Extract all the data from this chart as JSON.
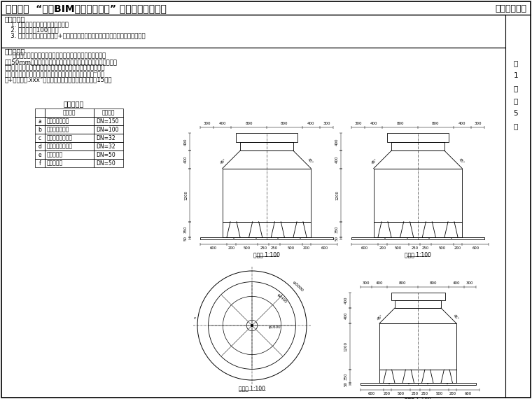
{
  "title": "第十二期  “全国BIM技能等级考试” 二级（设备）试题",
  "org": "中国图学学会",
  "req_title": "考试要求：",
  "req_lines": [
    "   1. 考试方式：计算机操作，闭卷；",
    "   2. 考试时间为100分钟；",
    "   3. 新建文件夹（以准考证号+姓名命名），用于存放本次考试中生成的全部文件。"
  ],
  "prob_title": "试题部分：",
  "prob_lines": [
    "    一、根据图纸，用构件集方式建立冷却塔模型，支座圆管直",
    "径为50mm，图中标示不全地方请自行设置，通过构件集参数的方",
    "式，将水管管口设置为构件参数，并通过改变参数的方式，根据",
    "表格中所给的管口直径设计连接件图元。请将模型文件以“冷却",
    "塔+考生姓名.xxx”为文件名保存到考生文件夹中。（15分）"
  ],
  "table_title": "管口直径表",
  "table_rows": [
    [
      "a",
      "冷却水入口直径",
      "DN=150"
    ],
    [
      "b",
      "冷却水出口直径",
      "DN=100"
    ],
    [
      "c",
      "手动补充水管直径",
      "DN=32"
    ],
    [
      "d",
      "自动补充水管直径",
      "DN=32"
    ],
    [
      "e",
      "排污管直径",
      "DN=50"
    ],
    [
      "f",
      "溢水管直径",
      "DN=50"
    ]
  ],
  "page_chars": [
    "第",
    "1",
    "页",
    "共",
    "5",
    "页"
  ]
}
